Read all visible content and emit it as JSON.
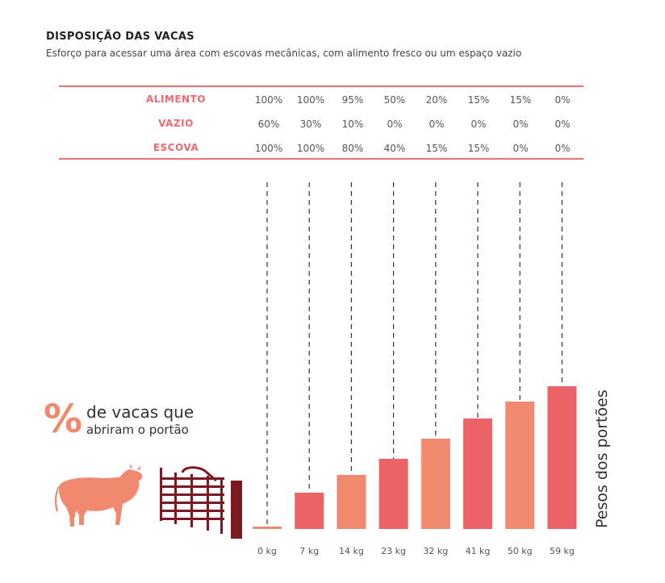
{
  "header": {
    "title": "DISPOSIÇÃO DAS VACAS",
    "subtitle": "Esforço para acessar uma área com escovas mecânicas, com alimento fresco ou um espaço vazio"
  },
  "table": {
    "rows": [
      {
        "label": "ALIMENTO",
        "values": [
          "100%",
          "100%",
          "95%",
          "50%",
          "20%",
          "15%",
          "15%",
          "0%"
        ]
      },
      {
        "label": "VAZIO",
        "values": [
          "60%",
          "30%",
          "10%",
          "0%",
          "0%",
          "0%",
          "0%",
          "0%"
        ]
      },
      {
        "label": "ESCOVA",
        "values": [
          "100%",
          "100%",
          "80%",
          "40%",
          "15%",
          "15%",
          "0%",
          "0%"
        ]
      }
    ]
  },
  "legend": {
    "symbol": "%",
    "line1": "de vacas que",
    "line2": "abriram o portão",
    "icons": [
      "cow-icon",
      "gate-icon"
    ]
  },
  "chart_data": {
    "type": "bar",
    "categories": [
      "0 kg",
      "7 kg",
      "14 kg",
      "23 kg",
      "32 kg",
      "41 kg",
      "50 kg",
      "59 kg"
    ],
    "values": [
      0,
      45,
      67,
      87,
      112,
      137,
      158,
      177
    ],
    "title": "",
    "xlabel": "",
    "ylabel": "Pesos dos portões",
    "colors": [
      "#f1896f",
      "#ec6468",
      "#f1896f",
      "#ec6468",
      "#f1896f",
      "#ec6468",
      "#f1896f",
      "#ec6468"
    ],
    "grid": false,
    "dashed_guides": true
  }
}
